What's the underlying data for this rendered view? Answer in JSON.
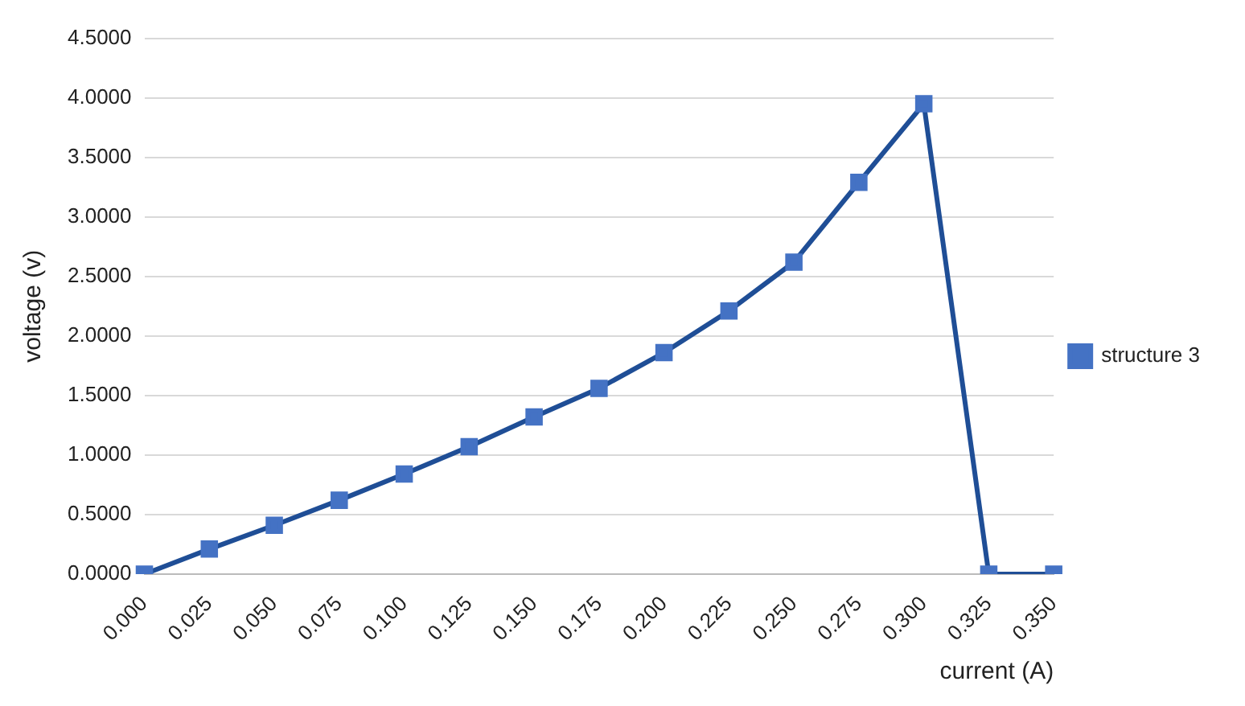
{
  "chart_data": {
    "type": "line",
    "xlabel": "current (A)",
    "ylabel": "voltage (v)",
    "categories": [
      "0.000",
      "0.025",
      "0.050",
      "0.075",
      "0.100",
      "0.125",
      "0.150",
      "0.175",
      "0.200",
      "0.225",
      "0.250",
      "0.275",
      "0.300",
      "0.325",
      "0.350"
    ],
    "series": [
      {
        "name": "structure 3",
        "color": "#1f4e96",
        "values": [
          0,
          0.21,
          0.41,
          0.62,
          0.84,
          1.07,
          1.32,
          1.56,
          1.86,
          2.21,
          2.62,
          3.29,
          3.95,
          0,
          0
        ]
      }
    ],
    "ylim": [
      0,
      4.5
    ],
    "yticks": [
      {
        "value": 0,
        "label": "0.0000"
      },
      {
        "value": 0.5,
        "label": "0.5000"
      },
      {
        "value": 1,
        "label": "1.0000"
      },
      {
        "value": 1.5,
        "label": "1.5000"
      },
      {
        "value": 2,
        "label": "2.0000"
      },
      {
        "value": 2.5,
        "label": "2.5000"
      },
      {
        "value": 3,
        "label": "3.0000"
      },
      {
        "value": 3.5,
        "label": "3.5000"
      },
      {
        "value": 4,
        "label": "4.0000"
      },
      {
        "value": 4.5,
        "label": "4.5000"
      }
    ],
    "grid": "y",
    "legend": "right",
    "marker": "square",
    "line_style": "solid"
  }
}
